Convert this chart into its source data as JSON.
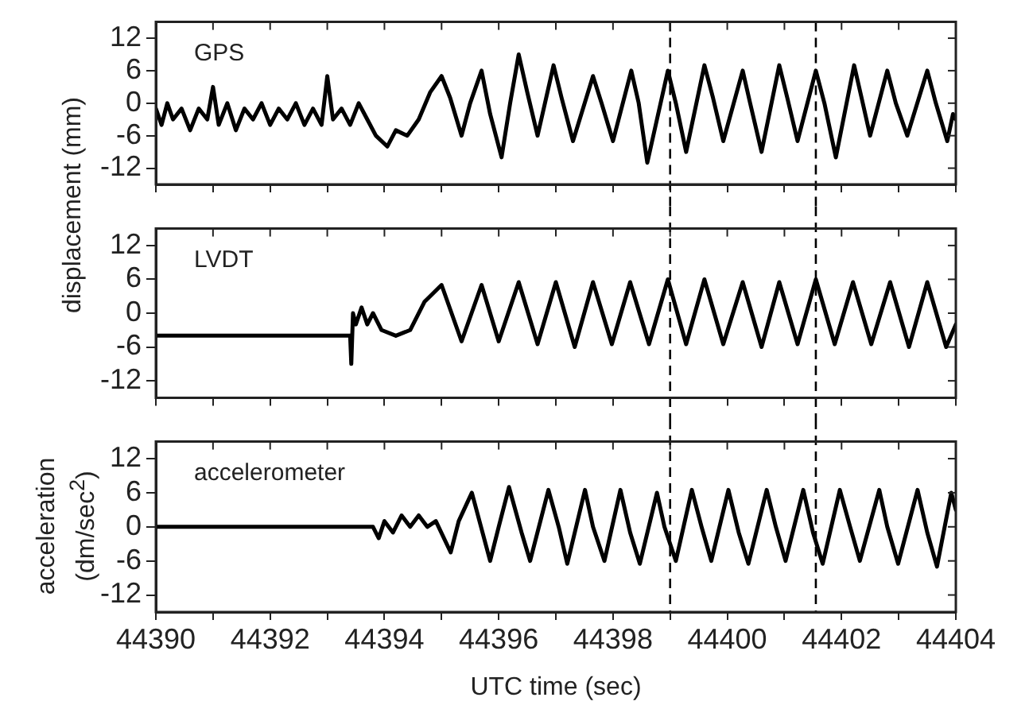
{
  "chart_data": [
    {
      "type": "line",
      "ylabel": "displacement (mm)",
      "annotations": [
        "GPS"
      ],
      "xlim": [
        44390,
        44404
      ],
      "xticks": [
        44390,
        {
          "value": 44391,
          "label": null
        },
        44392,
        {
          "value": 44393,
          "label": null
        },
        44394,
        {
          "value": 44395,
          "label": null
        },
        44396,
        {
          "value": 44397,
          "label": null
        },
        44398,
        {
          "value": 44399,
          "label": null
        },
        44400,
        {
          "value": 44401,
          "label": null
        },
        44402,
        {
          "value": 44403,
          "label": null
        },
        44404
      ],
      "ylim": [
        -15,
        15
      ],
      "yticks": [
        -12,
        -6,
        0,
        6,
        12
      ],
      "tick_labels": "y",
      "grid": false,
      "legend": false,
      "marker": "none",
      "line_style": "solid",
      "ref_lines": [
        {
          "axis": "x",
          "value": 44399,
          "color": "#000000",
          "line_style": "dashed"
        },
        {
          "axis": "x",
          "value": 44401.55,
          "color": "#000000",
          "line_style": "dashed"
        }
      ],
      "x": [
        44390.0,
        44390.1,
        44390.2,
        44390.3,
        44390.45,
        44390.6,
        44390.75,
        44390.9,
        44391.0,
        44391.1,
        44391.25,
        44391.4,
        44391.55,
        44391.7,
        44391.85,
        44392.0,
        44392.15,
        44392.3,
        44392.45,
        44392.6,
        44392.75,
        44392.9,
        44393.0,
        44393.1,
        44393.25,
        44393.4,
        44393.55,
        44393.7,
        44393.85,
        44394.05,
        44394.2,
        44394.4,
        44394.6,
        44394.8,
        44395.0,
        44395.15,
        44395.35,
        44395.5,
        44395.7,
        44395.85,
        44396.05,
        44396.2,
        44396.35,
        44396.5,
        44396.68,
        44396.96,
        44397.1,
        44397.3,
        44397.65,
        44397.8,
        44398.0,
        44398.32,
        44398.45,
        44398.6,
        44398.96,
        44399.1,
        44399.28,
        44399.6,
        44399.75,
        44399.93,
        44400.27,
        44400.4,
        44400.6,
        44400.91,
        44401.05,
        44401.23,
        44401.55,
        44401.7,
        44401.9,
        44402.22,
        44402.35,
        44402.5,
        44402.8,
        44402.95,
        44403.15,
        44403.5,
        44403.65,
        44403.85,
        44403.95,
        44404.0
      ],
      "series": [
        {
          "color": "#000000",
          "values": [
            -1,
            -4,
            0,
            -3,
            -1,
            -5,
            -1,
            -3,
            3,
            -4,
            0,
            -5,
            -1,
            -3,
            0,
            -4,
            -1,
            -3,
            0,
            -4,
            -1,
            -4,
            5,
            -3,
            -1,
            -4,
            0,
            -3,
            -6,
            -8,
            -5,
            -6,
            -3,
            2,
            5,
            1,
            -6,
            0,
            6,
            -2,
            -10,
            0,
            9,
            2,
            -6,
            7,
            1,
            -7,
            5,
            0,
            -7,
            6,
            0,
            -11,
            6,
            0,
            -9,
            7,
            1,
            -7,
            6,
            0,
            -9,
            7,
            1,
            -7,
            6,
            0,
            -10,
            7,
            1,
            -6,
            6,
            0,
            -6,
            6,
            0,
            -7,
            -2,
            -3
          ]
        }
      ]
    },
    {
      "type": "line",
      "annotations": [
        "LVDT"
      ],
      "xlim": [
        44390,
        44404
      ],
      "xticks": [
        44390,
        {
          "value": 44391,
          "label": null
        },
        44392,
        {
          "value": 44393,
          "label": null
        },
        44394,
        {
          "value": 44395,
          "label": null
        },
        44396,
        {
          "value": 44397,
          "label": null
        },
        44398,
        {
          "value": 44399,
          "label": null
        },
        44400,
        {
          "value": 44401,
          "label": null
        },
        44402,
        {
          "value": 44403,
          "label": null
        },
        44404
      ],
      "ylim": [
        -15,
        15
      ],
      "yticks": [
        -12,
        -6,
        0,
        6,
        12
      ],
      "tick_labels": "y",
      "grid": false,
      "legend": false,
      "marker": "none",
      "line_style": "solid",
      "ref_lines": [
        {
          "axis": "x",
          "value": 44399,
          "color": "#000000",
          "line_style": "dashed"
        },
        {
          "axis": "x",
          "value": 44401.55,
          "color": "#000000",
          "line_style": "dashed"
        }
      ],
      "x": [
        44390.0,
        44393.4,
        44393.42,
        44393.45,
        44393.5,
        44393.6,
        44393.7,
        44393.8,
        44393.95,
        44394.2,
        44394.45,
        44394.7,
        44395.0,
        44395.35,
        44395.7,
        44396.0,
        44396.35,
        44396.68,
        44397.0,
        44397.33,
        44397.65,
        44397.98,
        44398.3,
        44398.63,
        44398.96,
        44399.28,
        44399.6,
        44399.93,
        44400.27,
        44400.6,
        44400.91,
        44401.23,
        44401.55,
        44401.88,
        44402.2,
        44402.52,
        44402.85,
        44403.18,
        44403.5,
        44403.83,
        44404.0
      ],
      "series": [
        {
          "color": "#000000",
          "values": [
            -4,
            -4,
            -9,
            0,
            -2,
            1,
            -2,
            0,
            -3,
            -4,
            -3,
            2,
            5,
            -5,
            5,
            -5,
            5.5,
            -5.5,
            5.5,
            -6,
            5.5,
            -5.5,
            5.5,
            -5.5,
            6,
            -5.5,
            6,
            -5.5,
            5.5,
            -6,
            5.5,
            -5.5,
            6,
            -5.5,
            5.5,
            -5.5,
            5.5,
            -6,
            5.5,
            -6,
            -2
          ]
        }
      ]
    },
    {
      "type": "line",
      "ylabel": "acceleration (dm/sec$^{2}$)",
      "xlabel": "UTC time (sec)",
      "annotations": [
        "accelerometer"
      ],
      "xlim": [
        44390,
        44404
      ],
      "xticks": [
        44390,
        {
          "value": 44391,
          "label": null
        },
        44392,
        {
          "value": 44393,
          "label": null
        },
        44394,
        {
          "value": 44395,
          "label": null
        },
        44396,
        {
          "value": 44397,
          "label": null
        },
        44398,
        {
          "value": 44399,
          "label": null
        },
        44400,
        {
          "value": 44401,
          "label": null
        },
        44402,
        {
          "value": 44403,
          "label": null
        },
        44404
      ],
      "ylim": [
        -15,
        15
      ],
      "yticks": [
        -12,
        -6,
        0,
        6,
        12
      ],
      "grid": false,
      "legend": false,
      "marker": "none",
      "line_style": "solid",
      "ref_lines": [
        {
          "axis": "x",
          "value": 44399,
          "color": "#000000",
          "line_style": "dashed"
        },
        {
          "axis": "x",
          "value": 44401.55,
          "color": "#000000",
          "line_style": "dashed"
        }
      ],
      "x": [
        44390.0,
        44393.8,
        44393.9,
        44394.0,
        44394.15,
        44394.3,
        44394.45,
        44394.6,
        44394.75,
        44394.9,
        44395.16,
        44395.3,
        44395.53,
        44395.85,
        44396.0,
        44396.18,
        44396.4,
        44396.55,
        44396.87,
        44397.05,
        44397.2,
        44397.51,
        44397.65,
        44397.85,
        44398.13,
        44398.3,
        44398.47,
        44398.77,
        44398.9,
        44399.1,
        44399.38,
        44399.55,
        44399.72,
        44400.02,
        44400.2,
        44400.37,
        44400.69,
        44400.85,
        44401.02,
        44401.33,
        44401.5,
        44401.67,
        44401.97,
        44402.15,
        44402.32,
        44402.66,
        44402.8,
        44402.99,
        44403.33,
        44403.5,
        44403.67,
        44403.92,
        44404.0
      ],
      "series": [
        {
          "color": "#000000",
          "values": [
            0,
            0,
            -2,
            1,
            -1,
            2,
            0,
            2,
            0,
            1,
            -4.5,
            1,
            6,
            -6,
            0,
            7,
            -1,
            -6,
            6.5,
            0,
            -6.5,
            6.5,
            0,
            -6,
            6.5,
            -1,
            -6.5,
            6,
            0,
            -6,
            6.5,
            0,
            -6,
            6.5,
            -1,
            -6.5,
            6.5,
            0,
            -6,
            6.5,
            -1,
            -6.5,
            6.5,
            0,
            -6,
            6.5,
            0,
            -6.5,
            6.5,
            -1,
            -7,
            6,
            3
          ]
        }
      ]
    }
  ]
}
